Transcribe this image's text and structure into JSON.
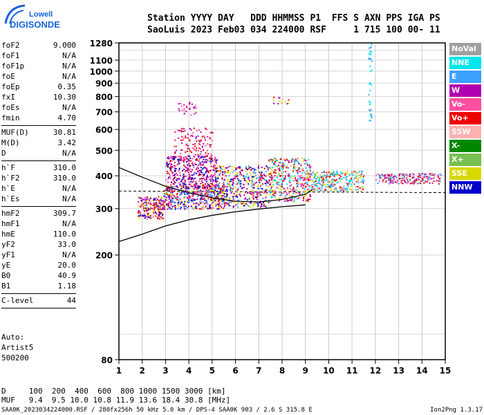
{
  "logo": {
    "line1": "Lowell",
    "line2": "DIGISONDE"
  },
  "header": {
    "labels": [
      "Station",
      "YYYY",
      "DAY",
      "DDD",
      "HHMMSS",
      "P1",
      "FFS",
      "S",
      "AXN",
      "PPS",
      "IGA",
      "PS"
    ],
    "values": [
      "SaoLuis",
      "2023",
      "Feb03",
      "034",
      "224000",
      "RSF",
      "",
      "1",
      "715",
      "100",
      "00-",
      "11"
    ]
  },
  "params": [
    [
      {
        "k": "foF2",
        "v": "9.000"
      },
      {
        "k": "foF1",
        "v": "N/A"
      },
      {
        "k": "foF1p",
        "v": "N/A"
      },
      {
        "k": "foE",
        "v": "N/A"
      },
      {
        "k": "foEp",
        "v": "0.35"
      },
      {
        "k": "fxI",
        "v": "10.30"
      },
      {
        "k": "foEs",
        "v": "N/A"
      },
      {
        "k": "fmin",
        "v": "4.70"
      }
    ],
    [
      {
        "k": "MUF(D)",
        "v": "30.81"
      },
      {
        "k": "M(D)",
        "v": "3.42"
      },
      {
        "k": "D",
        "v": "N/A"
      }
    ],
    [
      {
        "k": "h`F",
        "v": "310.0"
      },
      {
        "k": "h`F2",
        "v": "310.0"
      },
      {
        "k": "h`E",
        "v": "N/A"
      },
      {
        "k": "h`Es",
        "v": "N/A"
      }
    ],
    [
      {
        "k": "hmF2",
        "v": "309.7"
      },
      {
        "k": "hmF1",
        "v": "N/A"
      },
      {
        "k": "hmE",
        "v": "110.0"
      },
      {
        "k": "yF2",
        "v": "33.0"
      },
      {
        "k": "yF1",
        "v": "N/A"
      },
      {
        "k": "yE",
        "v": "20.0"
      },
      {
        "k": "B0",
        "v": "40.9"
      },
      {
        "k": "B1",
        "v": "1.18"
      }
    ],
    [
      {
        "k": "C-level",
        "v": "44"
      }
    ]
  ],
  "auto": {
    "line1": "Auto:",
    "line2": "Artist5",
    "line3": "500200"
  },
  "legend": [
    {
      "label": "NoVal",
      "color": "#a0a0a0"
    },
    {
      "label": "NNE",
      "color": "#00e5ee"
    },
    {
      "label": "E",
      "color": "#3ba0ff"
    },
    {
      "label": "W",
      "color": "#b000b0"
    },
    {
      "label": "Vo-",
      "color": "#ff4fa0"
    },
    {
      "label": "Vo+",
      "color": "#ee0000"
    },
    {
      "label": "SSW",
      "color": "#ffb0b0"
    },
    {
      "label": "X-",
      "color": "#008800"
    },
    {
      "label": "X+",
      "color": "#78c050"
    },
    {
      "label": "SSE",
      "color": "#d8d800"
    },
    {
      "label": "NNW",
      "color": "#0000cc"
    }
  ],
  "dmuf": {
    "d_label": "D",
    "d_values": [
      "100",
      "200",
      "400",
      "600",
      "800",
      "1000",
      "1500",
      "3000"
    ],
    "d_unit": "[km]",
    "muf_label": "MUF",
    "muf_values": [
      "9.4",
      "9.5",
      "10.0",
      "10.8",
      "11.9",
      "13.6",
      "18.4",
      "30.8"
    ],
    "muf_unit": "[MHz]"
  },
  "footer": {
    "left": "SAA0K_2023034224000.RSF / 280fx256h 50 kHz 5.0 km / DPS-4 SAA0K 903 / 2.6 S 315.8 E",
    "right": "Ion2Png 1.3.17"
  },
  "chart_data": {
    "type": "scatter",
    "xlim": [
      1,
      15
    ],
    "ylim": [
      80,
      1280
    ],
    "yscale": "log",
    "grid": true,
    "xticks": [
      1,
      2,
      3,
      4,
      5,
      6,
      7,
      8,
      9,
      10,
      11,
      12,
      13,
      14,
      15
    ],
    "yticks": [
      80,
      200,
      300,
      400,
      500,
      600,
      700,
      800,
      900,
      1000,
      1100,
      1280
    ],
    "legend_position": "right",
    "clusters": [
      {
        "x": [
          1.8,
          2.9
        ],
        "y": [
          275,
          335
        ],
        "n": 220,
        "colors": [
          "#0000cc",
          "#b000b0",
          "#ee0000",
          "#ff4fa0",
          "#d8d800"
        ]
      },
      {
        "x": [
          2.9,
          5.6
        ],
        "y": [
          300,
          370
        ],
        "n": 520,
        "colors": [
          "#0000cc",
          "#b000b0",
          "#ee0000",
          "#ff4fa0",
          "#d8d800",
          "#3ba0ff"
        ]
      },
      {
        "x": [
          3.0,
          5.2
        ],
        "y": [
          360,
          480
        ],
        "n": 420,
        "colors": [
          "#b000b0",
          "#ee0000",
          "#ff4fa0",
          "#0000cc"
        ]
      },
      {
        "x": [
          3.3,
          5.0
        ],
        "y": [
          480,
          610
        ],
        "n": 110,
        "colors": [
          "#b000b0",
          "#ff4fa0",
          "#ee0000"
        ]
      },
      {
        "x": [
          5.2,
          7.4
        ],
        "y": [
          305,
          440
        ],
        "n": 420,
        "colors": [
          "#ee0000",
          "#0000cc",
          "#d8d800",
          "#b000b0",
          "#3ba0ff"
        ]
      },
      {
        "x": [
          7.4,
          9.2
        ],
        "y": [
          320,
          470
        ],
        "n": 420,
        "colors": [
          "#d8d800",
          "#ee0000",
          "#ff4fa0",
          "#3ba0ff",
          "#00e5ee",
          "#b000b0"
        ]
      },
      {
        "x": [
          9.2,
          11.5
        ],
        "y": [
          350,
          420
        ],
        "n": 300,
        "colors": [
          "#00e5ee",
          "#3ba0ff",
          "#a0a0a0",
          "#d8d800",
          "#ee0000"
        ]
      },
      {
        "x": [
          12.0,
          14.8
        ],
        "y": [
          375,
          410
        ],
        "n": 200,
        "colors": [
          "#b000b0",
          "#ee0000",
          "#ff4fa0",
          "#3ba0ff"
        ]
      },
      {
        "x": [
          11.68,
          11.82
        ],
        "y": [
          650,
          1275
        ],
        "n": 40,
        "colors": [
          "#00e5ee",
          "#3ba0ff"
        ]
      },
      {
        "x": [
          3.5,
          4.3
        ],
        "y": [
          680,
          770
        ],
        "n": 30,
        "colors": [
          "#b000b0",
          "#ff4fa0"
        ]
      },
      {
        "x": [
          7.6,
          8.3
        ],
        "y": [
          740,
          800
        ],
        "n": 15,
        "colors": [
          "#ee0000",
          "#d8d800",
          "#b000b0"
        ]
      }
    ],
    "curves": [
      {
        "name": "",
        "color": "#000000",
        "points": [
          [
            1,
            225
          ],
          [
            2,
            240
          ],
          [
            3,
            258
          ],
          [
            4,
            272
          ],
          [
            5,
            283
          ],
          [
            6,
            292
          ],
          [
            7,
            299
          ],
          [
            8,
            305
          ],
          [
            9,
            310
          ]
        ]
      },
      {
        "name": "",
        "color": "#000000",
        "points": [
          [
            1,
            430
          ],
          [
            2,
            395
          ],
          [
            3,
            365
          ],
          [
            4,
            345
          ],
          [
            5,
            330
          ],
          [
            6,
            320
          ],
          [
            7,
            318
          ],
          [
            8,
            325
          ],
          [
            9,
            340
          ],
          [
            9.3,
            355
          ]
        ]
      }
    ],
    "dashed_line": {
      "color": "#000000",
      "x": [
        1,
        15
      ],
      "y": [
        350,
        345
      ]
    }
  }
}
